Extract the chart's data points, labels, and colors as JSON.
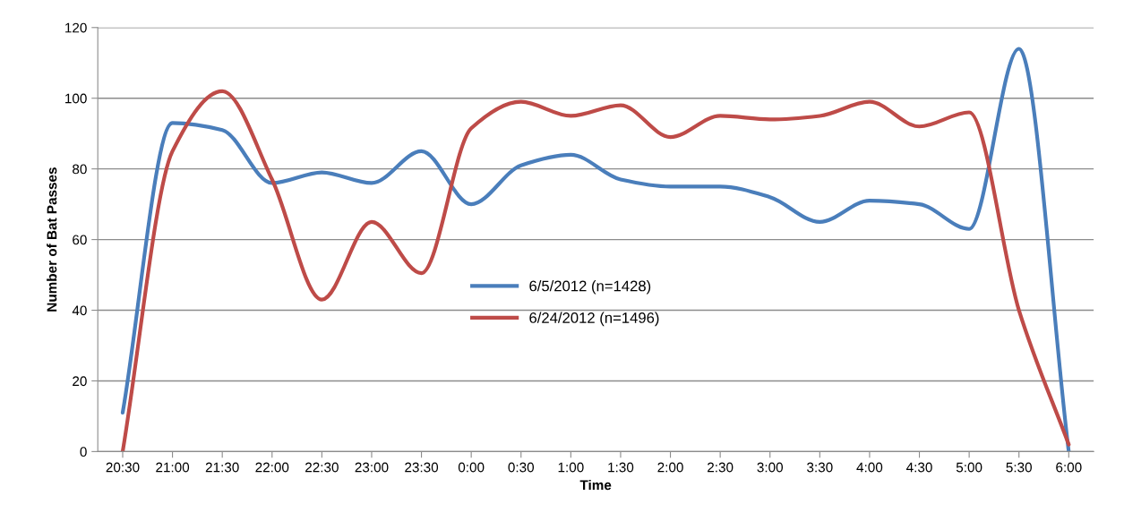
{
  "chart_data": {
    "type": "line",
    "xlabel": "Time",
    "ylabel": "Number of Bat Passes",
    "categories": [
      "20:30",
      "21:00",
      "21:30",
      "22:00",
      "22:30",
      "23:00",
      "23:30",
      "0:00",
      "0:30",
      "1:00",
      "1:30",
      "2:00",
      "2:30",
      "3:00",
      "3:30",
      "4:00",
      "4:30",
      "5:00",
      "5:30",
      "6:00"
    ],
    "series": [
      {
        "name": "6/5/2012 (n=1428)",
        "color": "#4a7ebb",
        "values": [
          11,
          93,
          91,
          76,
          79,
          76,
          85,
          70,
          81,
          84,
          77,
          75,
          75,
          72,
          65,
          71,
          70,
          63,
          114,
          0
        ]
      },
      {
        "name": "6/24/2012 (n=1496)",
        "color": "#be4b48",
        "values": [
          0,
          85,
          102,
          77,
          43,
          65,
          50.5,
          91.5,
          99,
          95,
          98,
          89,
          95,
          94,
          95,
          99,
          92,
          96,
          40,
          2
        ]
      }
    ],
    "ylim": [
      0,
      120
    ],
    "yticks": [
      0,
      20,
      40,
      60,
      80,
      100,
      120
    ],
    "grid": "y",
    "legend": "center",
    "marker": "none",
    "line_style": "solid"
  }
}
